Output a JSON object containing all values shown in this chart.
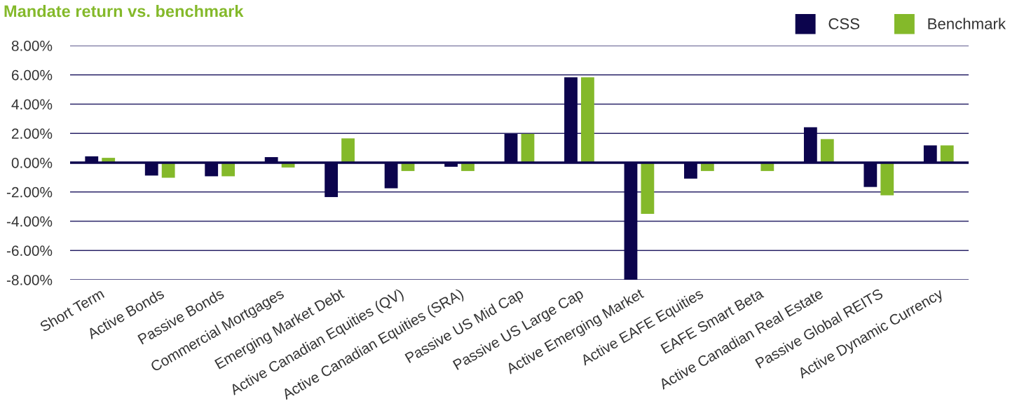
{
  "chart_data": {
    "type": "bar",
    "title": "Mandate return vs. benchmark",
    "categories": [
      "Short Term",
      "Active Bonds",
      "Passive Bonds",
      "Commercial Mortgages",
      "Emerging Market Debt",
      "Active Canadian Equities (QV)",
      "Active Canadian Equities (SRA)",
      "Passive US Mid Cap",
      "Passive US Large Cap",
      "Active Emerging Market",
      "Active EAFE Equities",
      "EAFE Smart Beta",
      "Active Canadian Real Estate",
      "Passive Global REITS",
      "Active Dynamic Currency"
    ],
    "series": [
      {
        "name": "CSS",
        "color": "#0c044d",
        "values": [
          0.43,
          -0.88,
          -0.93,
          0.38,
          -2.35,
          -1.75,
          -0.28,
          1.97,
          5.83,
          -8.0,
          -1.09,
          null,
          2.42,
          -1.66,
          1.18
        ]
      },
      {
        "name": "Benchmark",
        "color": "#84b92a",
        "values": [
          0.33,
          -1.03,
          -0.93,
          -0.33,
          1.66,
          -0.57,
          -0.57,
          1.97,
          5.83,
          -3.5,
          -0.57,
          -0.57,
          1.61,
          -2.23,
          1.18
        ]
      }
    ],
    "ylim": [
      -8,
      8
    ],
    "yticks": [
      {
        "value": -8,
        "label": "-8.00%"
      },
      {
        "value": -6,
        "label": "-6.00%"
      },
      {
        "value": -4,
        "label": "-4.00%"
      },
      {
        "value": -2,
        "label": "-2.00%"
      },
      {
        "value": 0,
        "label": "0.00%"
      },
      {
        "value": 2,
        "label": "2.00%"
      },
      {
        "value": 4,
        "label": "4.00%"
      },
      {
        "value": 6,
        "label": "6.00%"
      },
      {
        "value": 8,
        "label": "8.00%"
      }
    ],
    "grid": "y",
    "legend": "top right"
  }
}
